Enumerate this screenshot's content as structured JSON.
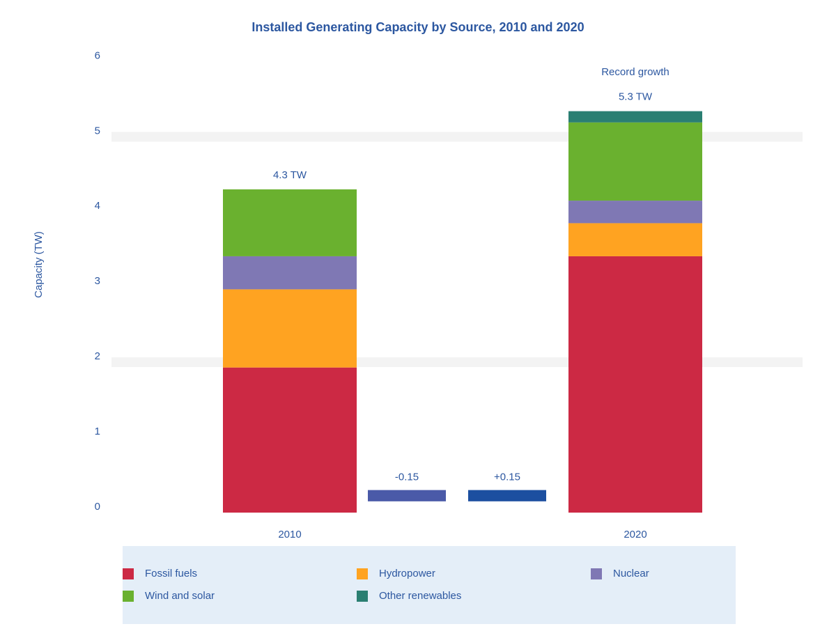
{
  "chart_data": {
    "type": "stacked_bar",
    "title": "Installed Generating Capacity by Source, 2010 and 2020",
    "y_label": "Capacity (TW)",
    "categories": [
      "2010",
      "2020"
    ],
    "series": [
      {
        "name": "Fossil fuels",
        "color": "#cc2944",
        "values": [
          1.93,
          3.41
        ]
      },
      {
        "name": "Hydropower",
        "color": "#ffa321",
        "values": [
          1.04,
          0.44
        ]
      },
      {
        "name": "Nuclear",
        "color": "#7f78b4",
        "values": [
          0.44,
          0.3
        ]
      },
      {
        "name": "Wind and solar",
        "color": "#6ab12f",
        "values": [
          0.89,
          1.04
        ]
      },
      {
        "name": "Other renewables",
        "color": "#2a7f72",
        "values": [
          null,
          0.15
        ]
      }
    ],
    "totals": [
      4.3,
      5.3
    ],
    "total_labels": [
      "4.3 TW",
      "5.3 TW"
    ],
    "bridges": [
      {
        "label": "-0.15",
        "color": "#4a5aa8",
        "low": 0.15,
        "high": 0.3
      },
      {
        "label": "+0.15",
        "color": "#1c4fa0",
        "low": 0.15,
        "high": 0.3
      }
    ],
    "annotation": "Record growth",
    "ylim": [
      0,
      6.3
    ],
    "yticks": [
      0,
      1,
      2,
      3,
      4,
      5,
      6
    ],
    "grid_ticks": [
      2,
      5
    ]
  }
}
